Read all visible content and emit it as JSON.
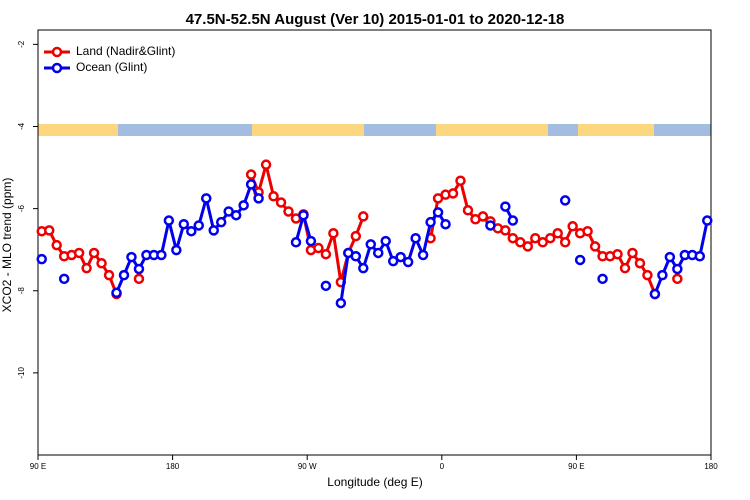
{
  "chart_data": {
    "type": "line",
    "title": "47.5N-52.5N August (Ver 10)   2015-01-01 to 2020-12-18",
    "x_label": "Longitude (deg E)",
    "y_label": "XCO2 - MLO trend (ppm)",
    "x": [
      92.5,
      97.5,
      102.5,
      107.5,
      112.5,
      117.5,
      122.5,
      127.5,
      132.5,
      137.5,
      142.5,
      147.5,
      152.5,
      157.5,
      162.5,
      167.5,
      172.5,
      177.5,
      182.5,
      187.5,
      192.5,
      197.5,
      202.5,
      207.5,
      212.5,
      217.5,
      222.5,
      227.5,
      232.5,
      237.5,
      242.5,
      247.5,
      252.5,
      257.5,
      262.5,
      267.5,
      272.5,
      277.5,
      282.5,
      287.5,
      292.5,
      297.5,
      302.5,
      307.5,
      312.5,
      317.5,
      322.5,
      327.5,
      332.5,
      337.5,
      342.5,
      347.5,
      352.5,
      357.5,
      362.5,
      367.5,
      372.5,
      377.5,
      382.5,
      387.5,
      392.5,
      397.5,
      402.5,
      407.5,
      412.5,
      417.5,
      422.5,
      427.5,
      432.5,
      437.5,
      442.5,
      447.5,
      452.5,
      457.5,
      462.5,
      467.5,
      472.5,
      477.5,
      482.5,
      487.5,
      492.5,
      497.5,
      502.5,
      507.5,
      512.5,
      517.5,
      522.5,
      527.5,
      532.5,
      537.5
    ],
    "series": [
      {
        "name": "Land (Nadir&Glint)",
        "color": "#ee0000",
        "values": [
          -6.55,
          -6.53,
          -6.89,
          -7.16,
          -7.13,
          -7.08,
          -7.45,
          -7.08,
          -7.33,
          -7.62,
          -8.08,
          null,
          null,
          -7.71,
          null,
          null,
          null,
          null,
          null,
          null,
          null,
          null,
          null,
          null,
          null,
          null,
          null,
          null,
          -5.17,
          -5.6,
          -4.93,
          -5.7,
          -5.85,
          -6.07,
          -6.24,
          -6.14,
          -7.01,
          -6.96,
          -7.11,
          -6.6,
          -7.79,
          -7.08,
          -6.67,
          -6.19,
          null,
          null,
          null,
          null,
          null,
          null,
          null,
          null,
          -6.72,
          -5.75,
          -5.66,
          -5.63,
          -5.32,
          -6.04,
          -6.26,
          -6.19,
          -6.31,
          -6.48,
          -6.53,
          -6.72,
          -6.82,
          -6.92,
          -6.72,
          -6.82,
          -6.72,
          -6.6,
          -6.82,
          -6.43,
          -6.6,
          -6.55,
          -6.92,
          -7.16,
          -7.16,
          -7.11,
          -7.45,
          -7.08,
          -7.33,
          -7.62,
          -8.08,
          null,
          null,
          -7.71,
          null,
          null,
          null,
          null
        ]
      },
      {
        "name": "Ocean (Glint)",
        "color": "#0000ee",
        "values": [
          -7.23,
          null,
          null,
          -7.71,
          null,
          null,
          null,
          null,
          null,
          null,
          -8.05,
          -7.62,
          -7.18,
          -7.47,
          -7.13,
          -7.13,
          -7.13,
          -6.29,
          -7.01,
          -6.38,
          -6.55,
          -6.41,
          -5.75,
          -6.53,
          -6.33,
          -6.07,
          -6.16,
          -5.92,
          -5.41,
          -5.75,
          null,
          null,
          null,
          null,
          -6.82,
          -6.16,
          -6.79,
          null,
          -7.88,
          null,
          -8.3,
          -7.08,
          -7.16,
          -7.45,
          -6.87,
          -7.08,
          -6.79,
          -7.28,
          -7.18,
          -7.3,
          -6.72,
          -7.13,
          -6.33,
          -6.09,
          -6.38,
          null,
          null,
          null,
          null,
          null,
          -6.41,
          null,
          -5.95,
          -6.29,
          null,
          null,
          null,
          null,
          null,
          null,
          -5.8,
          null,
          -7.25,
          null,
          null,
          -7.71,
          null,
          null,
          null,
          null,
          null,
          null,
          -8.08,
          -7.62,
          -7.18,
          -7.47,
          -7.13,
          -7.13,
          -7.16,
          -6.29
        ]
      }
    ],
    "xlim": [
      90,
      540
    ],
    "xticks": [
      {
        "value": 90,
        "label": "90 E"
      },
      180,
      {
        "value": 270,
        "label": "90 W"
      },
      {
        "value": 360,
        "label": "0"
      },
      {
        "value": 450,
        "label": "90 E"
      },
      {
        "value": 540,
        "label": "180"
      }
    ],
    "ylim": [
      -12,
      -1.65
    ],
    "yticks": [
      -2,
      -4,
      -6,
      -8,
      -10
    ],
    "legend": "top-left"
  }
}
